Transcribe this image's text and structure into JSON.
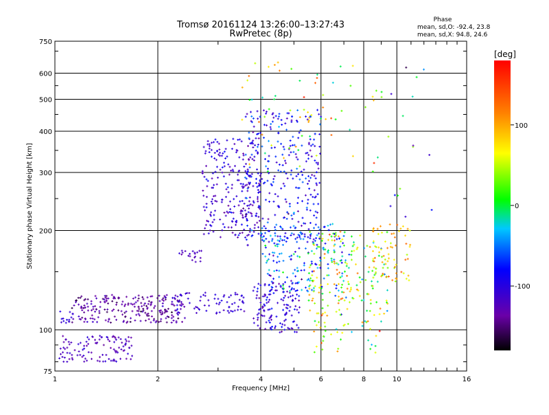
{
  "chart_data": {
    "type": "scatter",
    "title": "Tromsø 20161124 13:26:00–13:27:43",
    "subtitle": "RwPretec (8p)",
    "xlabel": "Frequency [MHz]",
    "ylabel": "Stationary phase Virtual Height [km]",
    "xscale": "log",
    "yscale": "log",
    "xlim": [
      1,
      16
    ],
    "ylim": [
      75,
      750
    ],
    "xticks": [
      1,
      2,
      4,
      6,
      8,
      10,
      16
    ],
    "xtick_labels": [
      "1",
      "2",
      "4",
      "6",
      "8",
      "10",
      "16"
    ],
    "yticks": [
      75,
      100,
      200,
      300,
      400,
      500,
      600,
      750
    ],
    "ytick_labels": [
      "75",
      "100",
      "200",
      "300",
      "400",
      "500",
      "600",
      "750"
    ],
    "grid": true,
    "stats": {
      "heading": "Phase",
      "line_o": "mean, sd,O: -92.4, 23.8",
      "line_x": "mean, sd,X:  94.8, 24.6"
    },
    "colorbar": {
      "label": "[deg]",
      "range": [
        -180,
        180
      ],
      "ticks": [
        100,
        0,
        -100
      ],
      "tick_labels": [
        "100",
        "0",
        "-100"
      ],
      "colormap": "rainbow (black-purple-blue-cyan-green-yellow-orange-red)"
    },
    "point_marker": "small cross, colored by phase",
    "clusters": [
      {
        "x": [
          1.02,
          1.12
        ],
        "y": [
          104,
          115
        ],
        "phase_mean": -105,
        "phase_sd": 8,
        "count": 12
      },
      {
        "x": [
          1.12,
          2.4
        ],
        "y": [
          105,
          128
        ],
        "phase_mean": -135,
        "phase_sd": 18,
        "count": 240
      },
      {
        "x": [
          1.03,
          1.7
        ],
        "y": [
          80,
          96
        ],
        "phase_mean": -120,
        "phase_sd": 15,
        "count": 110
      },
      {
        "x": [
          2.2,
          3.6
        ],
        "y": [
          112,
          130
        ],
        "phase_mean": -110,
        "phase_sd": 12,
        "count": 70
      },
      {
        "x": [
          2.3,
          2.7
        ],
        "y": [
          160,
          175
        ],
        "phase_mean": -120,
        "phase_sd": 12,
        "count": 20
      },
      {
        "x": [
          2.7,
          4.0
        ],
        "y": [
          190,
          380
        ],
        "phase_mean": -110,
        "phase_sd": 22,
        "count": 230
      },
      {
        "x": [
          3.6,
          6.0
        ],
        "y": [
          180,
          470
        ],
        "phase_mean": -90,
        "phase_sd": 35,
        "count": 330
      },
      {
        "x": [
          3.8,
          5.2
        ],
        "y": [
          98,
          140
        ],
        "phase_mean": -100,
        "phase_sd": 25,
        "count": 140
      },
      {
        "x": [
          4.0,
          7.0
        ],
        "y": [
          130,
          210
        ],
        "phase_mean": -60,
        "phase_sd": 50,
        "count": 170
      },
      {
        "x": [
          5.5,
          9.5
        ],
        "y": [
          110,
          200
        ],
        "phase_mean": 40,
        "phase_sd": 70,
        "count": 200
      },
      {
        "x": [
          8.5,
          11.0
        ],
        "y": [
          140,
          210
        ],
        "phase_mean": 90,
        "phase_sd": 40,
        "count": 60
      },
      {
        "x": [
          5.5,
          9.0
        ],
        "y": [
          85,
          110
        ],
        "phase_mean": 40,
        "phase_sd": 80,
        "count": 40
      },
      {
        "x": [
          3.5,
          9.5
        ],
        "y": [
          300,
          650
        ],
        "phase_mean": 60,
        "phase_sd": 90,
        "count": 70
      },
      {
        "x": [
          9.5,
          13.0
        ],
        "y": [
          220,
          650
        ],
        "phase_mean": -40,
        "phase_sd": 90,
        "count": 15
      }
    ]
  }
}
